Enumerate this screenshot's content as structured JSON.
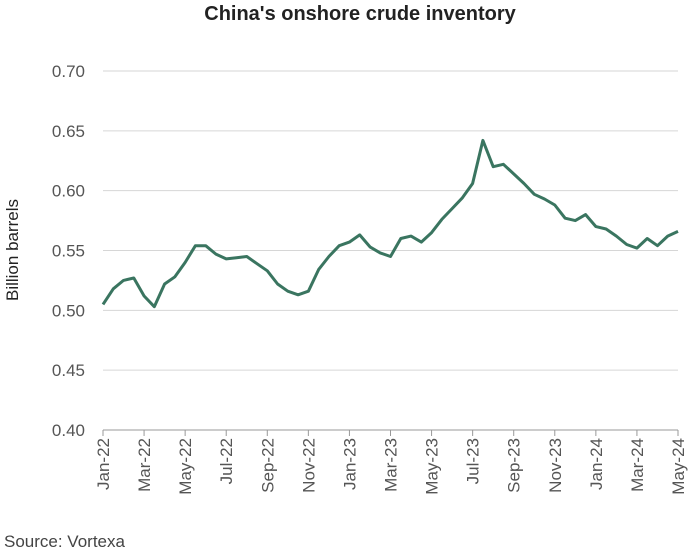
{
  "chart_data": {
    "type": "line",
    "title": "China's onshore crude inventory",
    "y_label": "Billion barrels",
    "source": "Source: Vortexa",
    "categories": [
      "Jan-22",
      null,
      null,
      null,
      "Mar-22",
      null,
      null,
      null,
      "May-22",
      null,
      null,
      null,
      "Jul-22",
      null,
      null,
      null,
      "Sep-22",
      null,
      null,
      null,
      "Nov-22",
      null,
      null,
      null,
      "Jan-23",
      null,
      null,
      null,
      "Mar-23",
      null,
      null,
      null,
      "May-23",
      null,
      null,
      null,
      "Jul-23",
      null,
      null,
      null,
      "Sep-23",
      null,
      null,
      null,
      "Nov-23",
      null,
      null,
      null,
      "Jan-24",
      null,
      null,
      null,
      "Mar-24",
      null,
      null,
      null,
      "May-24"
    ],
    "series": [
      {
        "name": "Onshore crude inventory",
        "color": "#3a7560",
        "values": [
          0.505,
          0.518,
          0.525,
          0.527,
          0.512,
          0.503,
          0.522,
          0.528,
          0.54,
          0.554,
          0.554,
          0.547,
          0.543,
          0.544,
          0.545,
          0.539,
          0.533,
          0.522,
          0.516,
          0.513,
          0.516,
          0.534,
          0.545,
          0.554,
          0.557,
          0.563,
          0.553,
          0.548,
          0.545,
          0.56,
          0.562,
          0.557,
          0.565,
          0.576,
          0.585,
          0.594,
          0.606,
          0.642,
          0.62,
          0.622,
          0.614,
          0.606,
          0.597,
          0.593,
          0.588,
          0.577,
          0.575,
          0.58,
          0.57,
          0.568,
          0.562,
          0.555,
          0.552,
          0.56,
          0.554,
          0.562,
          0.566
        ]
      }
    ],
    "ylim": [
      0.4,
      0.7
    ],
    "yticks": [
      {
        "value": 0.4,
        "label": "0.40"
      },
      {
        "value": 0.45,
        "label": "0.45"
      },
      {
        "value": 0.5,
        "label": "0.50"
      },
      {
        "value": 0.55,
        "label": "0.55"
      },
      {
        "value": 0.6,
        "label": "0.60"
      },
      {
        "value": 0.65,
        "label": "0.65"
      },
      {
        "value": 0.7,
        "label": "0.70"
      }
    ],
    "grid": true
  }
}
